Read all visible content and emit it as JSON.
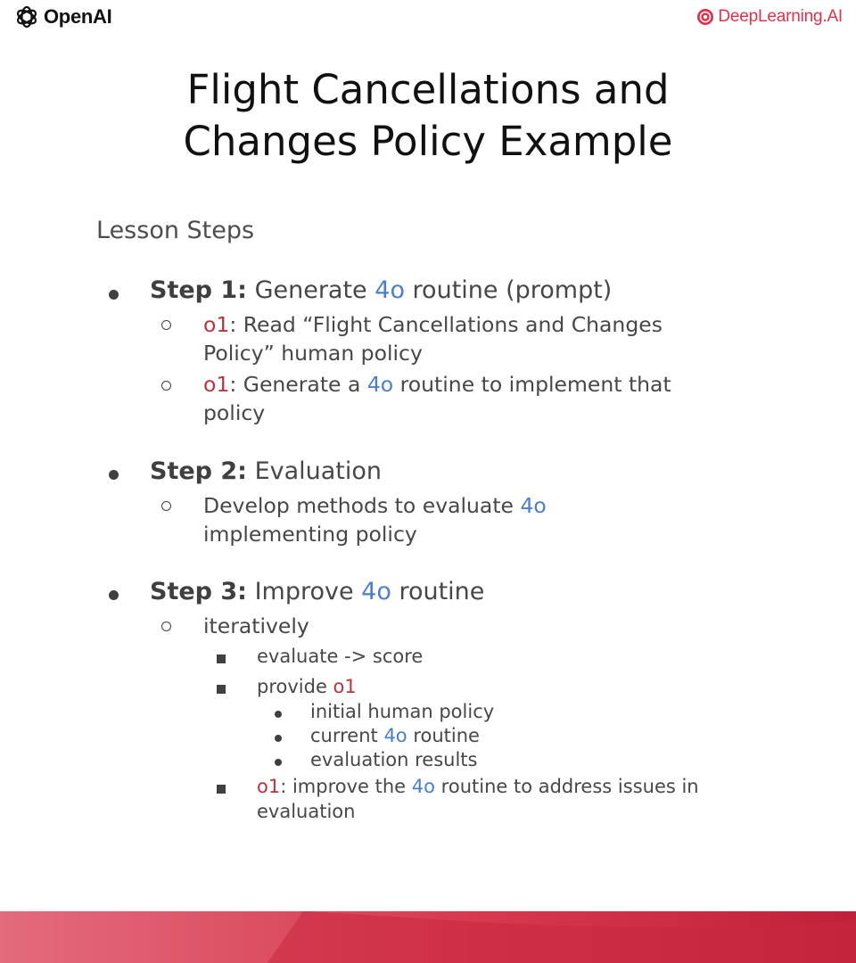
{
  "brand": {
    "left": "OpenAI",
    "right": "DeepLearning.AI"
  },
  "title": {
    "line1": "Flight Cancellations and",
    "line2": "Changes Policy Example"
  },
  "lesson": {
    "heading": "Lesson Steps"
  },
  "step1": {
    "label": "Step 1:",
    "text_a": " Generate ",
    "model": "4o",
    "text_b": " routine (prompt)",
    "sub1": {
      "o1": "o1",
      "line1": ": Read “Flight Cancellations and Changes",
      "line2": "Policy” human policy"
    },
    "sub2": {
      "o1": "o1",
      "text_a": ": Generate a ",
      "model": "4o",
      "text_b": " routine to implement that",
      "line2": "policy"
    }
  },
  "step2": {
    "label": "Step 2:",
    "text": " Evaluation",
    "sub1": {
      "text_a": "Develop methods to evaluate ",
      "model": "4o",
      "line2": "implementing policy"
    }
  },
  "step3": {
    "label": "Step 3:",
    "text_a": " Improve ",
    "model": "4o",
    "text_b": " routine",
    "sub1": {
      "text": "iteratively"
    },
    "item1": "evaluate -> score",
    "item2": {
      "text": "provide ",
      "o1": "o1"
    },
    "sub_items": {
      "a": "initial human policy",
      "b": {
        "text_a": "current ",
        "model": "4o",
        "text_b": " routine"
      },
      "c": "evaluation results"
    },
    "item3": {
      "o1": "o1",
      "text_a": ": improve the ",
      "model": "4o",
      "text_b": " routine to address issues in",
      "line2": "evaluation"
    }
  },
  "colors": {
    "model_blue": "#4a7fc9",
    "o1_red": "#b8353f",
    "brand_red": "#e0314b",
    "footer_red": "#c8283c"
  }
}
